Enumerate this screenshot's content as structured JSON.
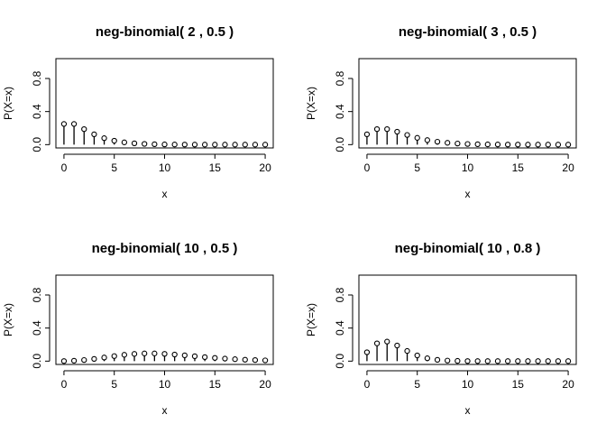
{
  "chart_data": [
    {
      "type": "stem",
      "title": "neg-binomial( 2 , 0.5 )",
      "xlabel": "x",
      "ylabel": "P(X=x)",
      "xlim": [
        0,
        20
      ],
      "ylim": [
        0,
        1
      ],
      "xticks": [
        0,
        5,
        10,
        15,
        20
      ],
      "yticks": [
        0.0,
        0.4,
        0.8
      ],
      "x": [
        0,
        1,
        2,
        3,
        4,
        5,
        6,
        7,
        8,
        9,
        10,
        11,
        12,
        13,
        14,
        15,
        16,
        17,
        18,
        19,
        20
      ],
      "values": [
        0.25,
        0.25,
        0.1875,
        0.125,
        0.0781,
        0.0469,
        0.0273,
        0.0156,
        0.0088,
        0.0049,
        0.0027,
        0.0015,
        0.0008,
        0.0004,
        0.0002,
        0.0001,
        0.0001,
        0.0,
        0.0,
        0.0,
        0.0
      ]
    },
    {
      "type": "stem",
      "title": "neg-binomial( 3 , 0.5 )",
      "xlabel": "x",
      "ylabel": "P(X=x)",
      "xlim": [
        0,
        20
      ],
      "ylim": [
        0,
        1
      ],
      "xticks": [
        0,
        5,
        10,
        15,
        20
      ],
      "yticks": [
        0.0,
        0.4,
        0.8
      ],
      "x": [
        0,
        1,
        2,
        3,
        4,
        5,
        6,
        7,
        8,
        9,
        10,
        11,
        12,
        13,
        14,
        15,
        16,
        17,
        18,
        19,
        20
      ],
      "values": [
        0.125,
        0.1875,
        0.1875,
        0.1563,
        0.1172,
        0.082,
        0.0547,
        0.0352,
        0.022,
        0.0134,
        0.0081,
        0.0048,
        0.0028,
        0.0016,
        0.0009,
        0.0005,
        0.0003,
        0.0002,
        0.0001,
        0.0001,
        0.0
      ]
    },
    {
      "type": "stem",
      "title": "neg-binomial( 10 , 0.5 )",
      "xlabel": "x",
      "ylabel": "P(X=x)",
      "xlim": [
        0,
        20
      ],
      "ylim": [
        0,
        1
      ],
      "xticks": [
        0,
        5,
        10,
        15,
        20
      ],
      "yticks": [
        0.0,
        0.4,
        0.8
      ],
      "x": [
        0,
        1,
        2,
        3,
        4,
        5,
        6,
        7,
        8,
        9,
        10,
        11,
        12,
        13,
        14,
        15,
        16,
        17,
        18,
        19,
        20
      ],
      "values": [
        0.001,
        0.0049,
        0.0134,
        0.0269,
        0.0436,
        0.0611,
        0.0764,
        0.0873,
        0.0928,
        0.0928,
        0.0881,
        0.0801,
        0.0701,
        0.0593,
        0.0487,
        0.0389,
        0.0304,
        0.0232,
        0.0174,
        0.0128,
        0.0093
      ]
    },
    {
      "type": "stem",
      "title": "neg-binomial( 10 , 0.8 )",
      "xlabel": "x",
      "ylabel": "P(X=x)",
      "xlim": [
        0,
        20
      ],
      "ylim": [
        0,
        1
      ],
      "xticks": [
        0,
        5,
        10,
        15,
        20
      ],
      "yticks": [
        0.0,
        0.4,
        0.8
      ],
      "x": [
        0,
        1,
        2,
        3,
        4,
        5,
        6,
        7,
        8,
        9,
        10,
        11,
        12,
        13,
        14,
        15,
        16,
        17,
        18,
        19,
        20
      ],
      "values": [
        0.1074,
        0.2147,
        0.2362,
        0.1889,
        0.1228,
        0.0688,
        0.0344,
        0.0157,
        0.0067,
        0.0027,
        0.001,
        0.0004,
        0.0001,
        0.0,
        0.0,
        0.0,
        0.0,
        0.0,
        0.0,
        0.0,
        0.0
      ]
    }
  ]
}
